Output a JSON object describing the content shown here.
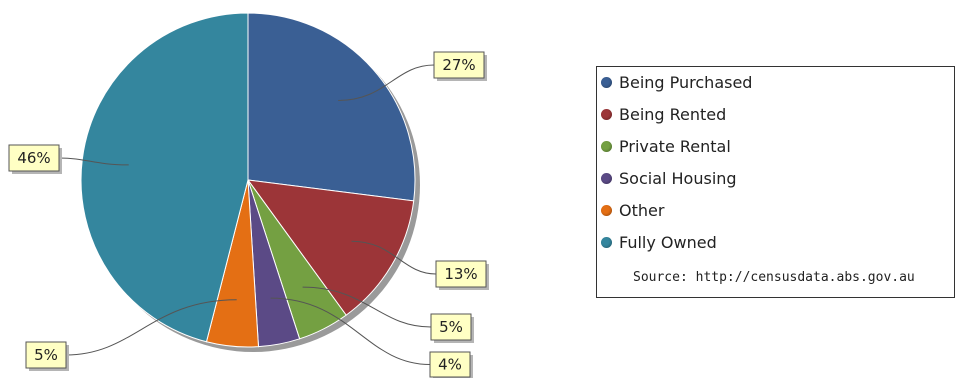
{
  "chart_data": {
    "type": "pie",
    "slices": [
      {
        "name": "Being Purchased",
        "value": 27,
        "label": "27%",
        "color": "#3a5f94"
      },
      {
        "name": "Being Rented",
        "value": 13,
        "label": "13%",
        "color": "#9c3538"
      },
      {
        "name": "Private Rental",
        "value": 5,
        "label": "5%",
        "color": "#74a042"
      },
      {
        "name": "Social Housing",
        "value": 4,
        "label": "4%",
        "color": "#5b4a86"
      },
      {
        "name": "Other",
        "value": 5,
        "label": "5%",
        "color": "#e46f14"
      },
      {
        "name": "Fully Owned",
        "value": 46,
        "label": "46%",
        "color": "#34869e"
      }
    ],
    "legend": {
      "position": "right",
      "source": "Source: http://censusdata.abs.gov.au"
    }
  }
}
